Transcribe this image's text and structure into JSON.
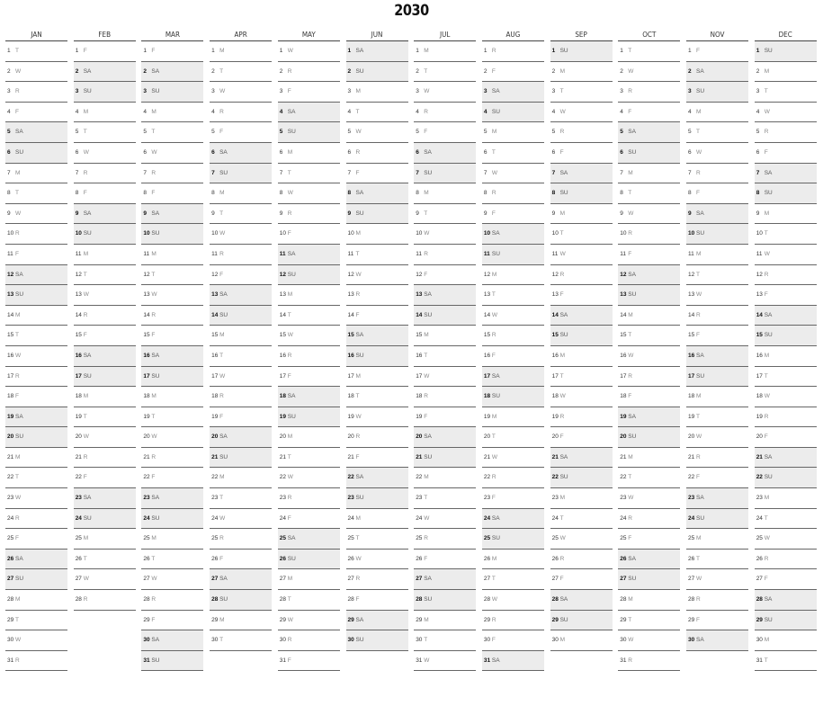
{
  "year": "2030",
  "weekend_color": "#ececec",
  "months": [
    {
      "name": "JAN",
      "start_dow": 2,
      "days": 31
    },
    {
      "name": "FEB",
      "start_dow": 5,
      "days": 28
    },
    {
      "name": "MAR",
      "start_dow": 5,
      "days": 31
    },
    {
      "name": "APR",
      "start_dow": 1,
      "days": 30
    },
    {
      "name": "MAY",
      "start_dow": 3,
      "days": 31
    },
    {
      "name": "JUN",
      "start_dow": 6,
      "days": 30
    },
    {
      "name": "JUL",
      "start_dow": 1,
      "days": 31
    },
    {
      "name": "AUG",
      "start_dow": 4,
      "days": 31
    },
    {
      "name": "SEP",
      "start_dow": 0,
      "days": 30
    },
    {
      "name": "OCT",
      "start_dow": 2,
      "days": 31
    },
    {
      "name": "NOV",
      "start_dow": 5,
      "days": 30
    },
    {
      "name": "DEC",
      "start_dow": 0,
      "days": 31
    }
  ],
  "weekday_letters": [
    "SU",
    "M",
    "T",
    "W",
    "R",
    "F",
    "SA"
  ]
}
